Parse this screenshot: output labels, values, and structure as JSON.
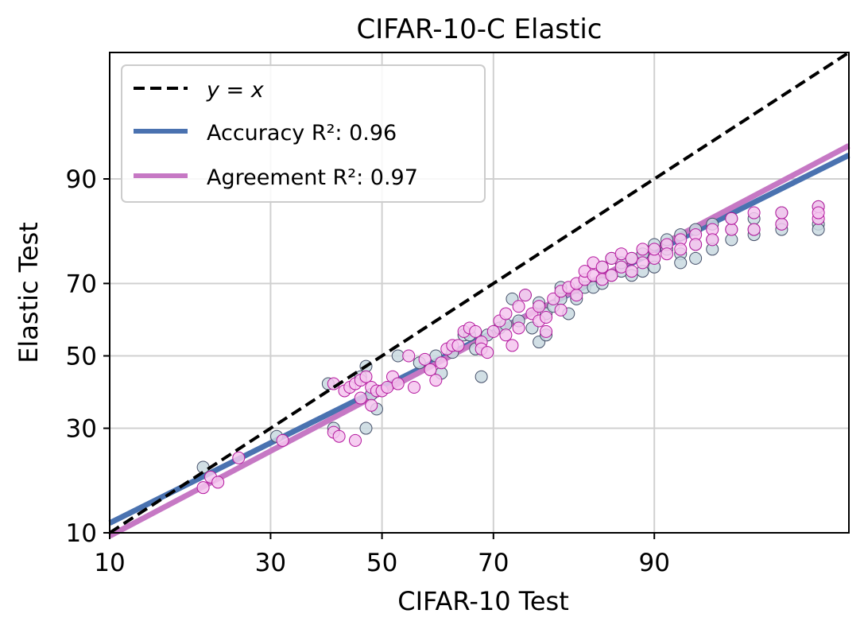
{
  "chart_data": {
    "type": "scatter",
    "title": "CIFAR-10-C Elastic",
    "xlabel": "CIFAR-10 Test",
    "ylabel": "Elastic Test",
    "scale": "probit",
    "xlim": [
      10,
      98.6
    ],
    "ylim": [
      10,
      98.6
    ],
    "xticks": [
      10,
      30,
      50,
      70,
      90
    ],
    "yticks": [
      10,
      30,
      50,
      70,
      90
    ],
    "grid": true,
    "legend_position": "upper-left",
    "legend": [
      {
        "key": "yx",
        "label": "y = x",
        "style": "dashed",
        "color": "#000000"
      },
      {
        "key": "accuracy",
        "label": "Accuracy R²: 0.96",
        "color": "#4a72b0"
      },
      {
        "key": "agreement",
        "label": "Agreement R²: 0.97",
        "color": "#c678c4"
      }
    ],
    "series": [
      {
        "key": "accuracy",
        "marker_fill": "#c9d9e0",
        "marker_edge": "#46506a",
        "fit_points": [
          [
            10,
            11.3
          ],
          [
            98.6,
            92.7
          ]
        ],
        "points": [
          [
            20,
            21
          ],
          [
            31,
            28
          ],
          [
            40,
            42
          ],
          [
            41,
            30
          ],
          [
            46,
            44
          ],
          [
            47,
            47
          ],
          [
            47,
            30
          ],
          [
            48,
            39
          ],
          [
            49,
            35
          ],
          [
            53,
            50
          ],
          [
            57,
            48
          ],
          [
            60,
            50
          ],
          [
            61,
            45
          ],
          [
            63,
            51
          ],
          [
            65,
            56
          ],
          [
            66,
            56
          ],
          [
            67,
            52
          ],
          [
            68,
            44
          ],
          [
            69,
            56
          ],
          [
            71,
            58
          ],
          [
            72,
            59
          ],
          [
            73,
            66
          ],
          [
            74,
            60
          ],
          [
            75,
            67
          ],
          [
            76,
            58
          ],
          [
            77,
            65
          ],
          [
            77,
            54
          ],
          [
            78,
            62
          ],
          [
            78,
            56
          ],
          [
            79,
            64
          ],
          [
            80,
            66
          ],
          [
            80,
            69
          ],
          [
            81,
            62
          ],
          [
            82,
            66
          ],
          [
            83,
            69
          ],
          [
            84,
            69
          ],
          [
            85,
            70
          ],
          [
            85,
            74
          ],
          [
            86,
            72
          ],
          [
            86,
            76
          ],
          [
            87,
            73
          ],
          [
            87,
            75
          ],
          [
            88,
            76
          ],
          [
            88,
            72
          ],
          [
            89,
            77
          ],
          [
            89,
            73
          ],
          [
            90,
            76
          ],
          [
            90,
            79
          ],
          [
            90,
            74
          ],
          [
            91,
            78
          ],
          [
            91,
            80
          ],
          [
            92,
            77
          ],
          [
            92,
            81
          ],
          [
            92,
            75
          ],
          [
            93,
            79
          ],
          [
            93,
            82
          ],
          [
            93,
            76
          ],
          [
            94,
            80
          ],
          [
            94,
            83
          ],
          [
            94,
            78
          ],
          [
            95,
            82
          ],
          [
            95,
            84
          ],
          [
            95,
            80
          ],
          [
            96,
            81
          ],
          [
            96,
            84
          ],
          [
            96,
            82
          ],
          [
            97,
            83
          ],
          [
            97,
            85
          ],
          [
            97,
            82
          ],
          [
            98,
            83
          ],
          [
            98,
            86
          ],
          [
            98,
            82
          ]
        ]
      },
      {
        "key": "agreement",
        "marker_fill": "#f5c6ee",
        "marker_edge": "#b4189e",
        "fit_points": [
          [
            10,
            9.6
          ],
          [
            98.6,
            93.6
          ]
        ],
        "points": [
          [
            20,
            17
          ],
          [
            21,
            19
          ],
          [
            22,
            18
          ],
          [
            25,
            23
          ],
          [
            32,
            27
          ],
          [
            41,
            42
          ],
          [
            41,
            29
          ],
          [
            42,
            28
          ],
          [
            43,
            40
          ],
          [
            44,
            41
          ],
          [
            45,
            27
          ],
          [
            45,
            42
          ],
          [
            46,
            38
          ],
          [
            46,
            43
          ],
          [
            47,
            44
          ],
          [
            48,
            36
          ],
          [
            48,
            41
          ],
          [
            49,
            40
          ],
          [
            50,
            40
          ],
          [
            51,
            41
          ],
          [
            52,
            44
          ],
          [
            53,
            42
          ],
          [
            55,
            50
          ],
          [
            56,
            41
          ],
          [
            58,
            49
          ],
          [
            59,
            46
          ],
          [
            60,
            43
          ],
          [
            61,
            48
          ],
          [
            62,
            52
          ],
          [
            63,
            53
          ],
          [
            64,
            53
          ],
          [
            65,
            57
          ],
          [
            66,
            58
          ],
          [
            67,
            57
          ],
          [
            68,
            54
          ],
          [
            68,
            52
          ],
          [
            69,
            51
          ],
          [
            70,
            57
          ],
          [
            71,
            60
          ],
          [
            72,
            62
          ],
          [
            72,
            56
          ],
          [
            73,
            53
          ],
          [
            74,
            58
          ],
          [
            74,
            64
          ],
          [
            75,
            67
          ],
          [
            76,
            62
          ],
          [
            77,
            64
          ],
          [
            77,
            60
          ],
          [
            78,
            61
          ],
          [
            78,
            57
          ],
          [
            79,
            66
          ],
          [
            80,
            63
          ],
          [
            80,
            68
          ],
          [
            81,
            69
          ],
          [
            82,
            67
          ],
          [
            82,
            70
          ],
          [
            83,
            71
          ],
          [
            83,
            73
          ],
          [
            84,
            72
          ],
          [
            84,
            75
          ],
          [
            85,
            71
          ],
          [
            85,
            74
          ],
          [
            86,
            72
          ],
          [
            86,
            76
          ],
          [
            87,
            74
          ],
          [
            87,
            77
          ],
          [
            88,
            73
          ],
          [
            88,
            76
          ],
          [
            89,
            75
          ],
          [
            89,
            78
          ],
          [
            90,
            76
          ],
          [
            90,
            78
          ],
          [
            91,
            79
          ],
          [
            91,
            77
          ],
          [
            92,
            80
          ],
          [
            92,
            78
          ],
          [
            93,
            81
          ],
          [
            93,
            79
          ],
          [
            94,
            82
          ],
          [
            94,
            80
          ],
          [
            95,
            82
          ],
          [
            95,
            84
          ],
          [
            96,
            82
          ],
          [
            96,
            85
          ],
          [
            97,
            83
          ],
          [
            97,
            85
          ],
          [
            98,
            84
          ],
          [
            98,
            86
          ],
          [
            98,
            85
          ]
        ]
      }
    ]
  }
}
